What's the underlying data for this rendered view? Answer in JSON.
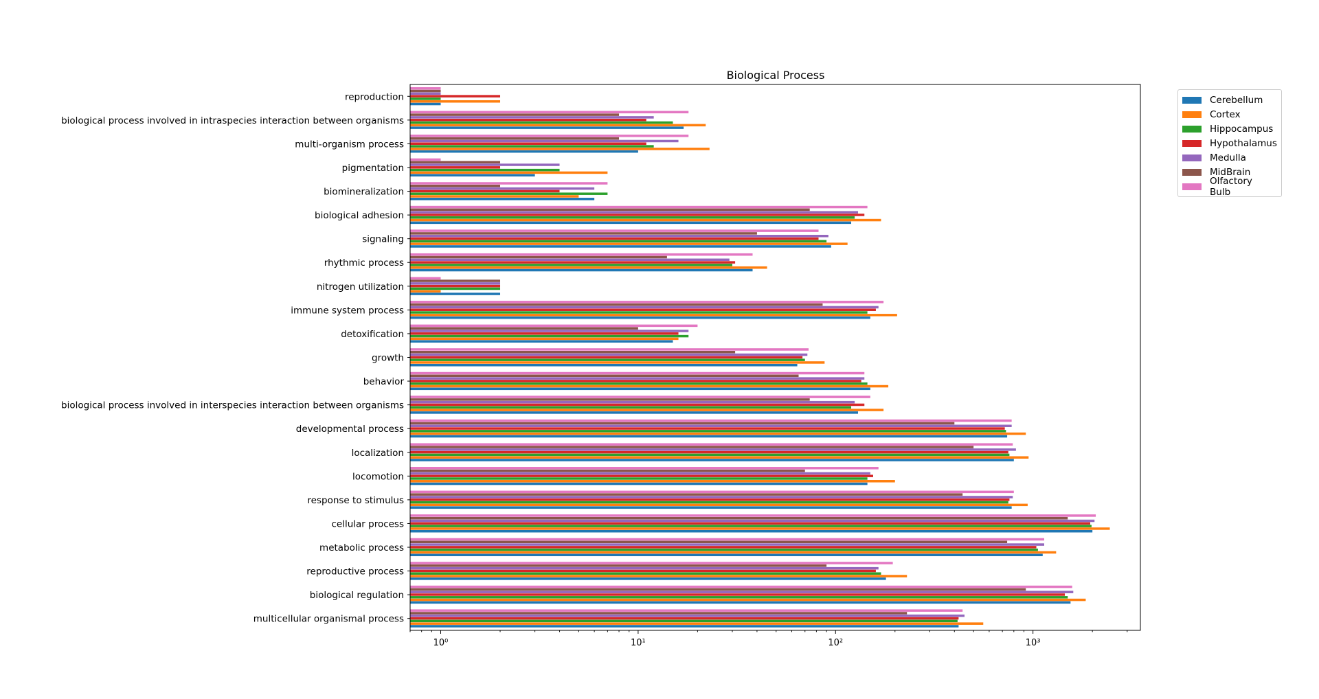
{
  "chart_data": {
    "type": "bar",
    "orientation": "horizontal",
    "title": "Biological Process",
    "xlabel": "",
    "ylabel": "",
    "xscale": "log",
    "xlim": [
      0.7,
      3500
    ],
    "xtick_values": [
      1,
      10,
      100,
      1000
    ],
    "xtick_labels": [
      "10⁰",
      "10¹",
      "10²",
      "10³"
    ],
    "grid": false,
    "legend_position": "outside-top-right",
    "categories": [
      "reproduction",
      "biological process involved in intraspecies interaction between organisms",
      "multi-organism process",
      "pigmentation",
      "biomineralization",
      "biological adhesion",
      "signaling",
      "rhythmic process",
      "nitrogen utilization",
      "immune system process",
      "detoxification",
      "growth",
      "behavior",
      "biological process involved in interspecies interaction between organisms",
      "developmental process",
      "localization",
      "locomotion",
      "response to stimulus",
      "cellular process",
      "metabolic process",
      "reproductive process",
      "biological regulation",
      "multicellular organismal process"
    ],
    "series": [
      {
        "name": "Cerebellum",
        "color": "#1f77b4",
        "values": [
          1,
          17,
          10,
          3,
          6,
          120,
          95,
          38,
          2,
          150,
          15,
          64,
          150,
          130,
          740,
          800,
          145,
          780,
          2000,
          1120,
          180,
          1550,
          420
        ]
      },
      {
        "name": "Cortex",
        "color": "#ff7f0e",
        "values": [
          2,
          22,
          23,
          7,
          5,
          170,
          115,
          45,
          1,
          205,
          16,
          88,
          185,
          175,
          920,
          950,
          200,
          940,
          2450,
          1310,
          230,
          1850,
          560
        ]
      },
      {
        "name": "Hippocampus",
        "color": "#2ca02c",
        "values": [
          1,
          15,
          12,
          4,
          7,
          125,
          90,
          30,
          2,
          145,
          18,
          70,
          145,
          120,
          730,
          760,
          145,
          750,
          1980,
          1060,
          170,
          1500,
          415
        ]
      },
      {
        "name": "Hypothalamus",
        "color": "#d62728",
        "values": [
          2,
          11,
          11,
          2,
          4,
          140,
          82,
          31,
          2,
          160,
          16,
          68,
          135,
          140,
          720,
          750,
          155,
          760,
          1950,
          1040,
          160,
          1450,
          420
        ]
      },
      {
        "name": "Medulla",
        "color": "#9467bd",
        "values": [
          1,
          12,
          16,
          4,
          6,
          130,
          92,
          29,
          2,
          165,
          18,
          72,
          140,
          125,
          780,
          820,
          150,
          790,
          2050,
          1140,
          165,
          1600,
          450
        ]
      },
      {
        "name": "MidBrain",
        "color": "#8c564b",
        "values": [
          1,
          8,
          8,
          2,
          2,
          74,
          40,
          14,
          2,
          86,
          10,
          31,
          65,
          74,
          400,
          500,
          70,
          440,
          1500,
          740,
          90,
          920,
          230
        ]
      },
      {
        "name": "Olfactory Bulb",
        "color": "#e377c2",
        "values": [
          1,
          18,
          18,
          1,
          7,
          145,
          82,
          38,
          1,
          175,
          20,
          73,
          140,
          150,
          780,
          790,
          165,
          800,
          2080,
          1140,
          195,
          1580,
          440
        ]
      }
    ]
  }
}
